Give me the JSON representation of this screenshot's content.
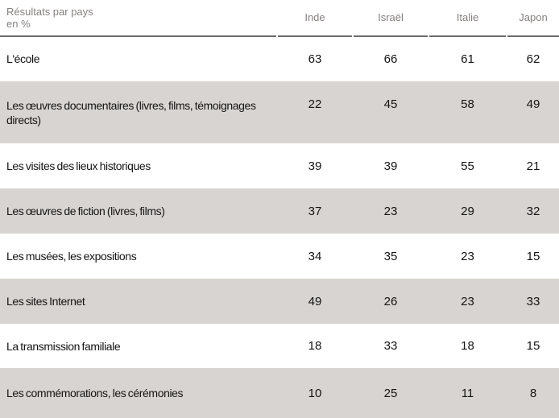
{
  "table": {
    "title_line1": "Résultats par pays",
    "title_line2": "en %",
    "columns": [
      "Inde",
      "Israël",
      "Italie",
      "Japon"
    ],
    "rows": [
      {
        "label": "L'école",
        "values": [
          63,
          66,
          61,
          62
        ]
      },
      {
        "label": "Les œuvres documentaires (livres, films, témoignages directs)",
        "values": [
          22,
          45,
          58,
          49
        ]
      },
      {
        "label": "Les visites des lieux historiques",
        "values": [
          39,
          39,
          55,
          21
        ]
      },
      {
        "label": "Les œuvres de fiction (livres, films)",
        "values": [
          37,
          23,
          29,
          32
        ]
      },
      {
        "label": "Les musées, les expositions",
        "values": [
          34,
          35,
          23,
          15
        ]
      },
      {
        "label": "Les sites Internet",
        "values": [
          49,
          26,
          23,
          33
        ]
      },
      {
        "label": "La transmission familiale",
        "values": [
          18,
          33,
          18,
          15
        ]
      },
      {
        "label": "Les commémorations, les cérémonies",
        "values": [
          10,
          25,
          11,
          8
        ]
      }
    ]
  },
  "colors": {
    "alt_row_background": "#d8d4d1",
    "header_text": "#868180",
    "header_rule": "#6b6b6b",
    "body_text": "#141414"
  },
  "chart_data": {
    "type": "table",
    "title": "Résultats par pays en %",
    "categories": [
      "L'école",
      "Les œuvres documentaires (livres, films, témoignages directs)",
      "Les visites des lieux historiques",
      "Les œuvres de fiction (livres, films)",
      "Les musées, les expositions",
      "Les sites Internet",
      "La transmission familiale",
      "Les commémorations, les cérémonies"
    ],
    "series": [
      {
        "name": "Inde",
        "values": [
          63,
          22,
          39,
          37,
          34,
          49,
          18,
          10
        ]
      },
      {
        "name": "Israël",
        "values": [
          66,
          45,
          39,
          23,
          35,
          26,
          33,
          25
        ]
      },
      {
        "name": "Italie",
        "values": [
          61,
          58,
          55,
          29,
          23,
          23,
          18,
          11
        ]
      },
      {
        "name": "Japon",
        "values": [
          62,
          49,
          21,
          32,
          15,
          33,
          15,
          8
        ]
      }
    ],
    "layout": {
      "striped_rows": true,
      "header_rule": true,
      "unit": "%"
    }
  }
}
